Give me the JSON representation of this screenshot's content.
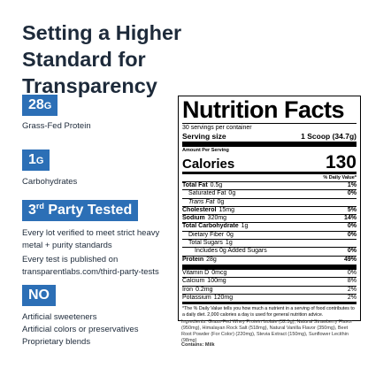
{
  "header": {
    "title": "Setting a Higher Standard for Transparency"
  },
  "features": [
    {
      "badge": "28",
      "unit": "G",
      "lines": [
        "Grass-Fed Protein"
      ]
    },
    {
      "badge": "1",
      "unit": "G",
      "lines": [
        "Carbohydrates"
      ]
    },
    {
      "badge": "3",
      "sup": "rd",
      "rest": "Party Tested",
      "lines": [
        "Every lot verified to meet strict heavy metal + purity standards",
        "Every test is published on transparentlabs.com/third-party-tests"
      ]
    },
    {
      "badge": "NO",
      "lines": [
        "Artificial sweeteners",
        "Artificial colors or preservatives",
        "Proprietary blends"
      ]
    }
  ],
  "nutrition": {
    "title": "Nutrition Facts",
    "servings": "30 servings per container",
    "serving_size_label": "Serving size",
    "serving_size": "1 Scoop (34.7g)",
    "amount_per_serving": "Amount Per Serving",
    "calories_label": "Calories",
    "calories": "130",
    "dv_header": "% Daily Value*",
    "rows": [
      {
        "name": "Total Fat",
        "amount": "0.5g",
        "dv": "1%"
      },
      {
        "name": "Saturated Fat",
        "amount": "0g",
        "dv": "0%"
      },
      {
        "name": "Trans Fat",
        "amount": "0g"
      },
      {
        "name": "Cholesterol",
        "amount": "15mg",
        "dv": "5%"
      },
      {
        "name": "Sodium",
        "amount": "320mg",
        "dv": "14%"
      },
      {
        "name": "Total Carbohydrate",
        "amount": "1g",
        "dv": "0%"
      },
      {
        "name": "Dietary Fiber",
        "amount": "0g",
        "dv": "0%"
      },
      {
        "name": "Total Sugars",
        "amount": "1g"
      },
      {
        "name": "Includes 0g Added Sugars",
        "dv": "0%"
      },
      {
        "name": "Protein",
        "amount": "28g",
        "dv": "49%"
      },
      {
        "name": "Vitamin D",
        "amount": "0mcg",
        "dv": "0%"
      },
      {
        "name": "Calcium",
        "amount": "100mg",
        "dv": "8%"
      },
      {
        "name": "Iron",
        "amount": "0.2mg",
        "dv": "2%"
      },
      {
        "name": "Potassium",
        "amount": "120mg",
        "dv": "2%"
      }
    ],
    "footnote": "*The % Daily Value tells you how much a nutrient in a serving of food contributes to a daily diet. 2,000 calories a day is used for general nutrition advice.",
    "ingredients": "Ingredients: Grass-Fed Whey Protein Isolate (32.5g), Natural Strawberry Flavor (950mg), Himalayan Rock Salt (518mg), Natural Vanilla Flavor (350mg), Beet Root Powder (For Color) (220mg), Stevia Extract (150mg), Sunflower Lecithin (98mg)",
    "contains": "Contains: Milk"
  }
}
